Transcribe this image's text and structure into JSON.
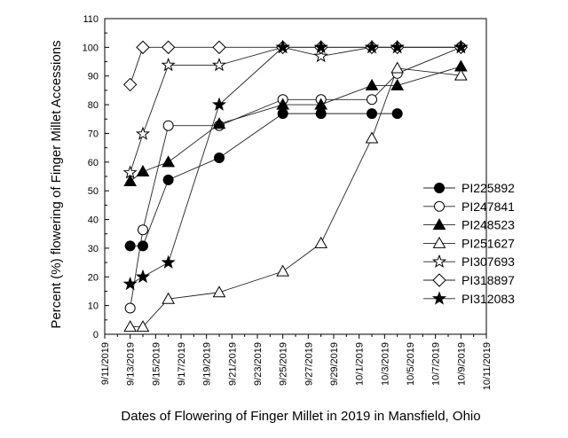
{
  "chart_data": {
    "type": "line",
    "xlabel": "Dates of Flowering of Finger Millet in 2019 in Mansfield, Ohio",
    "ylabel": "Percent (%) flowering of Finger Millet Accessions",
    "xlim": [
      "2019-09-11",
      "2019-10-11"
    ],
    "ylim": [
      0,
      110
    ],
    "y_ticks": [
      0,
      10,
      20,
      30,
      40,
      50,
      60,
      70,
      80,
      90,
      100,
      110
    ],
    "x_ticks": [
      "9/11/2019",
      "9/13/2019",
      "9/15/2019",
      "9/17/2019",
      "9/19/2019",
      "9/21/2019",
      "9/23/2019",
      "9/25/2019",
      "9/27/2019",
      "9/29/2019",
      "10/1/2019",
      "10/3/2019",
      "10/5/2019",
      "10/7/2019",
      "10/9/2019",
      "10/11/2019"
    ],
    "grid": false,
    "legend_position": "right",
    "series": [
      {
        "name": "PI225892",
        "marker": "circle-filled",
        "x": [
          "2019-09-13",
          "2019-09-14",
          "2019-09-16",
          "2019-09-20",
          "2019-09-25",
          "2019-09-28",
          "2019-10-02",
          "2019-10-04"
        ],
        "y": [
          30.8,
          30.8,
          53.8,
          61.5,
          76.9,
          76.9,
          76.9,
          76.9
        ]
      },
      {
        "name": "PI247841",
        "marker": "circle-open",
        "x": [
          "2019-09-13",
          "2019-09-14",
          "2019-09-16",
          "2019-09-20",
          "2019-09-25",
          "2019-09-28",
          "2019-10-02",
          "2019-10-04",
          "2019-10-09"
        ],
        "y": [
          9.1,
          36.4,
          72.7,
          72.7,
          81.8,
          81.8,
          81.8,
          90.9,
          100
        ]
      },
      {
        "name": "PI248523",
        "marker": "triangle-filled",
        "x": [
          "2019-09-13",
          "2019-09-14",
          "2019-09-16",
          "2019-09-20",
          "2019-09-25",
          "2019-09-28",
          "2019-10-02",
          "2019-10-04",
          "2019-10-09"
        ],
        "y": [
          53.3,
          56.7,
          60,
          73.3,
          80,
          80,
          86.7,
          86.7,
          93.3
        ]
      },
      {
        "name": "PI251627",
        "marker": "triangle-open",
        "x": [
          "2019-09-13",
          "2019-09-14",
          "2019-09-16",
          "2019-09-20",
          "2019-09-25",
          "2019-09-28",
          "2019-10-02",
          "2019-10-04",
          "2019-10-09"
        ],
        "y": [
          2.6,
          2.6,
          12.3,
          14.6,
          21.9,
          31.7,
          68.3,
          92.7,
          90.2
        ]
      },
      {
        "name": "PI307693",
        "marker": "star-open",
        "x": [
          "2019-09-13",
          "2019-09-14",
          "2019-09-16",
          "2019-09-20",
          "2019-09-25",
          "2019-09-28",
          "2019-10-02",
          "2019-10-04",
          "2019-10-09"
        ],
        "y": [
          56.3,
          69.8,
          93.8,
          93.8,
          100,
          96.9,
          100,
          100,
          100
        ]
      },
      {
        "name": "PI318897",
        "marker": "diamond-open",
        "x": [
          "2019-09-13",
          "2019-09-14",
          "2019-09-16",
          "2019-09-20",
          "2019-09-25",
          "2019-09-28",
          "2019-10-02",
          "2019-10-04",
          "2019-10-09"
        ],
        "y": [
          87,
          100,
          100,
          100,
          100,
          100,
          100,
          100,
          100
        ]
      },
      {
        "name": "PI312083",
        "marker": "star-filled",
        "x": [
          "2019-09-13",
          "2019-09-14",
          "2019-09-16",
          "2019-09-20",
          "2019-09-25",
          "2019-09-28",
          "2019-10-02",
          "2019-10-04",
          "2019-10-09"
        ],
        "y": [
          17.5,
          20,
          25,
          80,
          100,
          100,
          100,
          100,
          100
        ]
      }
    ]
  }
}
